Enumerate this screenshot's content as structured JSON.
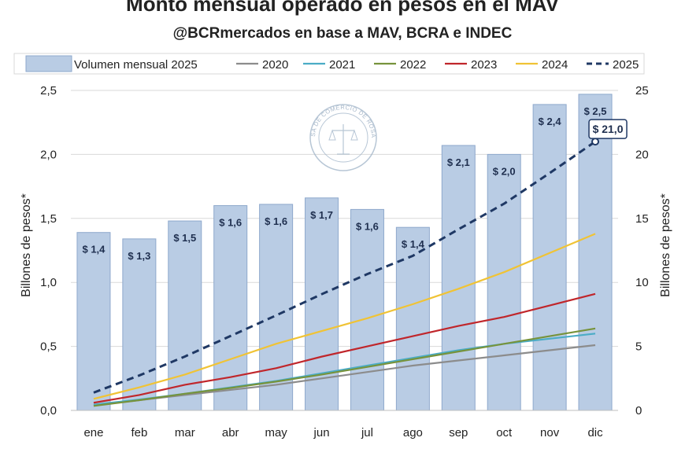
{
  "colors": {
    "bar_fill": "#b9cce4",
    "bar_stroke": "#8ea8cc",
    "s2020": "#8c8c8c",
    "s2021": "#4bacc6",
    "s2022": "#77933c",
    "s2023": "#c0262b",
    "s2024": "#f0c335",
    "s2025": "#1f3864",
    "grid": "#d9d9d9"
  },
  "chart_data": {
    "type": "bar+line",
    "title": "Monto mensual operado en pesos en el MAV",
    "subtitle": "@BCRmercados en base a MAV, BCRA e INDEC",
    "categories": [
      "ene",
      "feb",
      "mar",
      "abr",
      "may",
      "jun",
      "jul",
      "ago",
      "sep",
      "oct",
      "nov",
      "dic"
    ],
    "left_axis": {
      "label": "Billones de pesos*",
      "min": 0,
      "max": 2.5,
      "ticks": [
        "0,0",
        "0,5",
        "1,0",
        "1,5",
        "2,0",
        "2,5"
      ]
    },
    "right_axis": {
      "label": "Billones de pesos*",
      "min": 0,
      "max": 25,
      "ticks": [
        "0",
        "5",
        "10",
        "15",
        "20",
        "25"
      ]
    },
    "bars": {
      "name": "Volumen mensual 2025",
      "axis": "left",
      "values": [
        1.39,
        1.34,
        1.48,
        1.6,
        1.61,
        1.66,
        1.57,
        1.43,
        2.07,
        2.0,
        2.39,
        2.47
      ],
      "labels": [
        "$ 1,4",
        "$ 1,3",
        "$ 1,5",
        "$ 1,6",
        "$ 1,6",
        "$ 1,7",
        "$ 1,6",
        "$ 1,4",
        "$ 2,1",
        "$ 2,0",
        "$ 2,4",
        "$ 2,5"
      ]
    },
    "series": [
      {
        "name": "2020",
        "color_key": "s2020",
        "dashed": false,
        "axis": "right",
        "values": [
          0.4,
          0.8,
          1.2,
          1.6,
          2.0,
          2.5,
          3.0,
          3.5,
          3.9,
          4.3,
          4.7,
          5.1
        ]
      },
      {
        "name": "2021",
        "color_key": "s2021",
        "dashed": false,
        "axis": "right",
        "values": [
          0.45,
          0.85,
          1.3,
          1.8,
          2.3,
          2.9,
          3.5,
          4.1,
          4.7,
          5.2,
          5.6,
          6.0
        ]
      },
      {
        "name": "2022",
        "color_key": "s2022",
        "dashed": false,
        "axis": "right",
        "values": [
          0.35,
          0.8,
          1.3,
          1.75,
          2.25,
          2.8,
          3.4,
          4.0,
          4.6,
          5.2,
          5.8,
          6.4
        ]
      },
      {
        "name": "2023",
        "color_key": "s2023",
        "dashed": false,
        "axis": "right",
        "values": [
          0.6,
          1.2,
          2.0,
          2.6,
          3.3,
          4.2,
          5.0,
          5.8,
          6.6,
          7.3,
          8.2,
          9.1
        ]
      },
      {
        "name": "2024",
        "color_key": "s2024",
        "dashed": false,
        "axis": "right",
        "values": [
          0.9,
          1.8,
          2.8,
          4.0,
          5.2,
          6.2,
          7.2,
          8.3,
          9.5,
          10.8,
          12.3,
          13.8
        ]
      },
      {
        "name": "2025",
        "color_key": "s2025",
        "dashed": true,
        "axis": "right",
        "values": [
          1.39,
          2.73,
          4.21,
          5.81,
          7.42,
          9.08,
          10.65,
          12.08,
          14.15,
          16.15,
          18.54,
          21.0
        ]
      }
    ],
    "annotation": {
      "text": "$ 21,0",
      "series": "2025",
      "index": 11
    },
    "legend_position": "top",
    "grid": true
  },
  "watermark": {
    "text": "BOLSA DE COMERCIO DE ROSARIO"
  }
}
